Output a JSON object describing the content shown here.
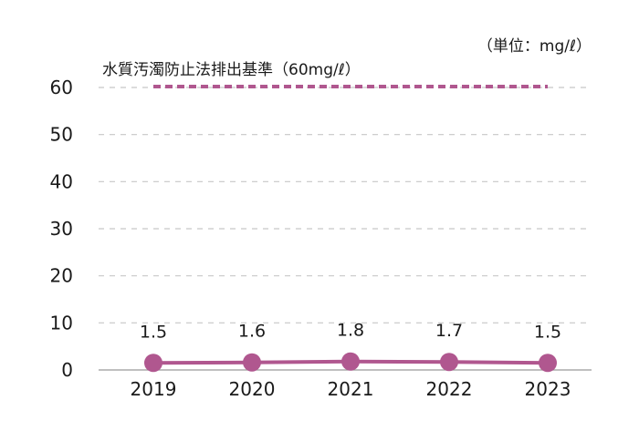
{
  "chart_data": {
    "type": "line",
    "unit_label": "（単位：mg/ℓ）",
    "categories": [
      "2019",
      "2020",
      "2021",
      "2022",
      "2023"
    ],
    "series": [
      {
        "values": [
          1.5,
          1.6,
          1.8,
          1.7,
          1.5
        ],
        "data_labels": [
          "1.5",
          "1.6",
          "1.8",
          "1.7",
          "1.5"
        ],
        "color": "#b0578f"
      }
    ],
    "reference_line": {
      "label": "水質汚濁防止法排出基準（60mg/ℓ）",
      "value": 60,
      "color": "#b0578f",
      "style": "dashed"
    },
    "ylim": [
      0,
      60
    ],
    "yticks": [
      "0",
      "10",
      "20",
      "30",
      "40",
      "50",
      "60"
    ],
    "grid": true,
    "grid_color": "#c8c8c8",
    "axis_color": "#999999"
  }
}
